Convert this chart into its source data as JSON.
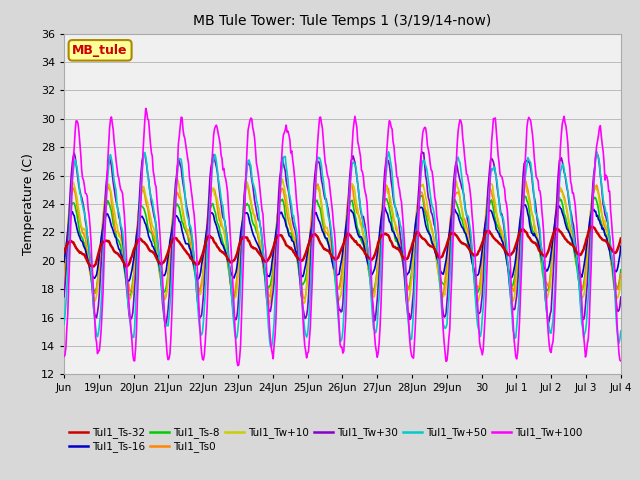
{
  "title": "MB Tule Tower: Tule Temps 1 (3/19/14-now)",
  "ylabel": "Temperature (C)",
  "ylim": [
    12,
    36
  ],
  "yticks": [
    12,
    14,
    16,
    18,
    20,
    22,
    24,
    26,
    28,
    30,
    32,
    34,
    36
  ],
  "x_labels": [
    "Jun",
    "19Jun",
    "20Jun",
    "21Jun",
    "22Jun",
    "23Jun",
    "24Jun",
    "25Jun",
    "26Jun",
    "27Jun",
    "28Jun",
    "29Jun",
    "30",
    "Jul 1",
    "Jul 2",
    "Jul 3",
    "Jul 4"
  ],
  "background_color": "#d8d8d8",
  "plot_bg_color": "#f0f0f0",
  "grid_color": "#cccccc",
  "series": [
    {
      "label": "Tul1_Ts-32",
      "color": "#cc0000",
      "base": 20.5,
      "amp": 0.8,
      "phase": 0.0,
      "trend": 0.06,
      "noise": 0.15
    },
    {
      "label": "Tul1_Ts-16",
      "color": "#0000cc",
      "base": 21.0,
      "amp": 2.0,
      "phase": 0.3,
      "trend": 0.04,
      "noise": 0.3
    },
    {
      "label": "Tul1_Ts-8",
      "color": "#00cc00",
      "base": 21.0,
      "amp": 2.8,
      "phase": 0.5,
      "trend": 0.03,
      "noise": 0.4
    },
    {
      "label": "Tul1_Ts0",
      "color": "#ff8800",
      "base": 21.5,
      "amp": 3.2,
      "phase": 0.55,
      "trend": 0.02,
      "noise": 0.5
    },
    {
      "label": "Tul1_Tw+10",
      "color": "#cccc00",
      "base": 21.5,
      "amp": 3.5,
      "phase": 0.6,
      "trend": 0.01,
      "noise": 0.5
    },
    {
      "label": "Tul1_Tw+30",
      "color": "#8800cc",
      "base": 22.0,
      "amp": 5.0,
      "phase": 0.8,
      "trend": 0.0,
      "noise": 0.6
    },
    {
      "label": "Tul1_Tw+50",
      "color": "#00cccc",
      "base": 21.5,
      "amp": 5.5,
      "phase": 1.0,
      "trend": 0.0,
      "noise": 0.7
    },
    {
      "label": "Tul1_Tw+100",
      "color": "#ff00ff",
      "base": 22.5,
      "amp": 7.5,
      "phase": 1.3,
      "trend": 0.0,
      "noise": 0.9
    }
  ],
  "legend_row1": [
    "Tul1_Ts-32",
    "Tul1_Ts-16",
    "Tul1_Ts-8",
    "Tul1_Ts0",
    "Tul1_Tw+10",
    "Tul1_Tw+30"
  ],
  "legend_row2": [
    "Tul1_Tw+50",
    "Tul1_Tw+100"
  ],
  "legend_box_color": "#ffff99",
  "legend_box_edge": "#aa8800",
  "legend_box_text": "MB_tule",
  "legend_box_text_color": "#cc0000"
}
